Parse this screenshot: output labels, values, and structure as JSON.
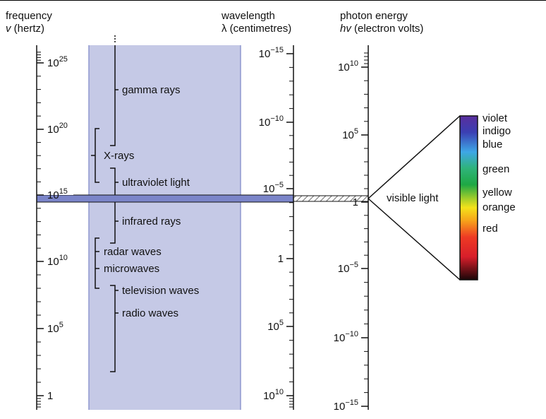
{
  "headers": {
    "frequency": {
      "title": "frequency",
      "sym": "v",
      "unit": " (hertz)"
    },
    "wavelength": {
      "title": "wavelength",
      "sym": "λ",
      "unit": " (centimetres)"
    },
    "energy": {
      "title": "photon energy",
      "sym": "hv",
      "unit": " (electron volts)"
    }
  },
  "frequency_ticks": [
    {
      "base": "10",
      "exp": "25"
    },
    {
      "base": "10",
      "exp": "20"
    },
    {
      "base": "10",
      "exp": "15"
    },
    {
      "base": "10",
      "exp": "10"
    },
    {
      "base": "10",
      "exp": "5"
    },
    {
      "base": "1",
      "exp": ""
    }
  ],
  "wavelength_ticks": [
    {
      "base": "10",
      "exp": "−15"
    },
    {
      "base": "10",
      "exp": "−10"
    },
    {
      "base": "10",
      "exp": "−5"
    },
    {
      "base": "1",
      "exp": ""
    },
    {
      "base": "10",
      "exp": "5"
    },
    {
      "base": "10",
      "exp": "10"
    }
  ],
  "energy_ticks": [
    {
      "base": "10",
      "exp": "10"
    },
    {
      "base": "10",
      "exp": "5"
    },
    {
      "base": "1",
      "exp": ""
    },
    {
      "base": "10",
      "exp": "−5"
    },
    {
      "base": "10",
      "exp": "−10"
    },
    {
      "base": "10",
      "exp": "−15"
    }
  ],
  "categories": {
    "gamma": "gamma rays",
    "xrays": "X-rays",
    "uv": "ultraviolet light",
    "ir": "infrared rays",
    "radar": "radar waves",
    "micro": "microwaves",
    "tv": "television waves",
    "radio": "radio waves"
  },
  "visible_light_label": "visible light",
  "colors": [
    "violet",
    "indigo",
    "blue",
    "green",
    "yellow",
    "orange",
    "red"
  ],
  "palette": {
    "band_fill": "#c5c9e6",
    "band_edge": "#8f97cf",
    "visible_strip": "#7b85c9",
    "axis": "#111111"
  }
}
